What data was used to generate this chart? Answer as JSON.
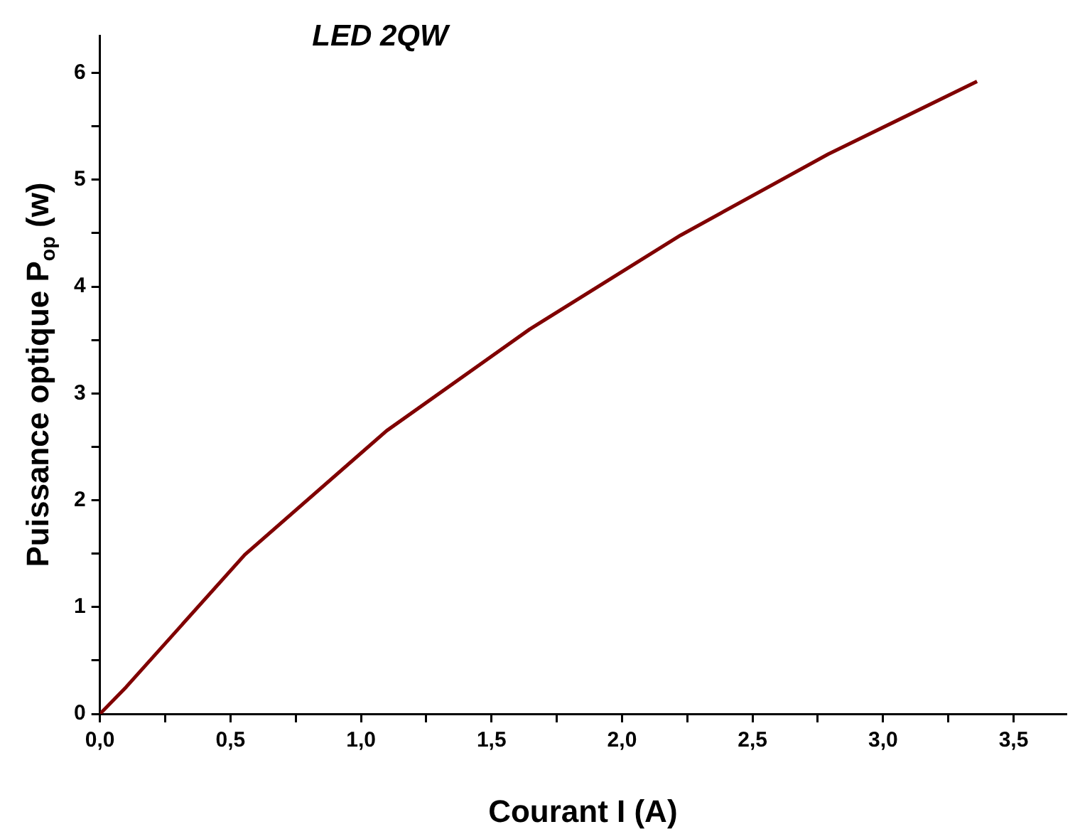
{
  "chart_data": {
    "type": "line",
    "title": "LED 2QW",
    "xlabel": "Courant I (A)",
    "ylabel": "Puissance optique P$_{op}$ (w)",
    "x": [
      0,
      0.1,
      0.555,
      1.098,
      1.646,
      2.224,
      2.79,
      3.36
    ],
    "series": [
      {
        "color": "#800000",
        "values": [
          0,
          0.25,
          1.49,
          2.65,
          3.6,
          4.48,
          5.24,
          5.92
        ]
      }
    ],
    "xlim": [
      0,
      3.7
    ],
    "ylim": [
      0,
      6.35
    ],
    "xticks": [
      {
        "value": 0,
        "label": "0,0"
      },
      {
        "value": 0.25,
        "label": null
      },
      {
        "value": 0.5,
        "label": "0,5"
      },
      {
        "value": 0.75,
        "label": null
      },
      {
        "value": 1,
        "label": "1,0"
      },
      {
        "value": 1.25,
        "label": null
      },
      {
        "value": 1.5,
        "label": "1,5"
      },
      {
        "value": 1.75,
        "label": null
      },
      {
        "value": 2,
        "label": "2,0"
      },
      {
        "value": 2.25,
        "label": null
      },
      {
        "value": 2.5,
        "label": "2,5"
      },
      {
        "value": 2.75,
        "label": null
      },
      {
        "value": 3,
        "label": "3,0"
      },
      {
        "value": 3.25,
        "label": null
      },
      {
        "value": 3.5,
        "label": "3,5"
      }
    ],
    "yticks": [
      0,
      {
        "value": 0.5,
        "label": null
      },
      1,
      {
        "value": 1.5,
        "label": null
      },
      2,
      {
        "value": 2.5,
        "label": null
      },
      3,
      {
        "value": 3.5,
        "label": null
      },
      4,
      {
        "value": 4.5,
        "label": null
      },
      5,
      {
        "value": 5.5,
        "label": null
      },
      6
    ],
    "grid": false,
    "legend": false,
    "marker": "none",
    "line_style": "solid"
  }
}
